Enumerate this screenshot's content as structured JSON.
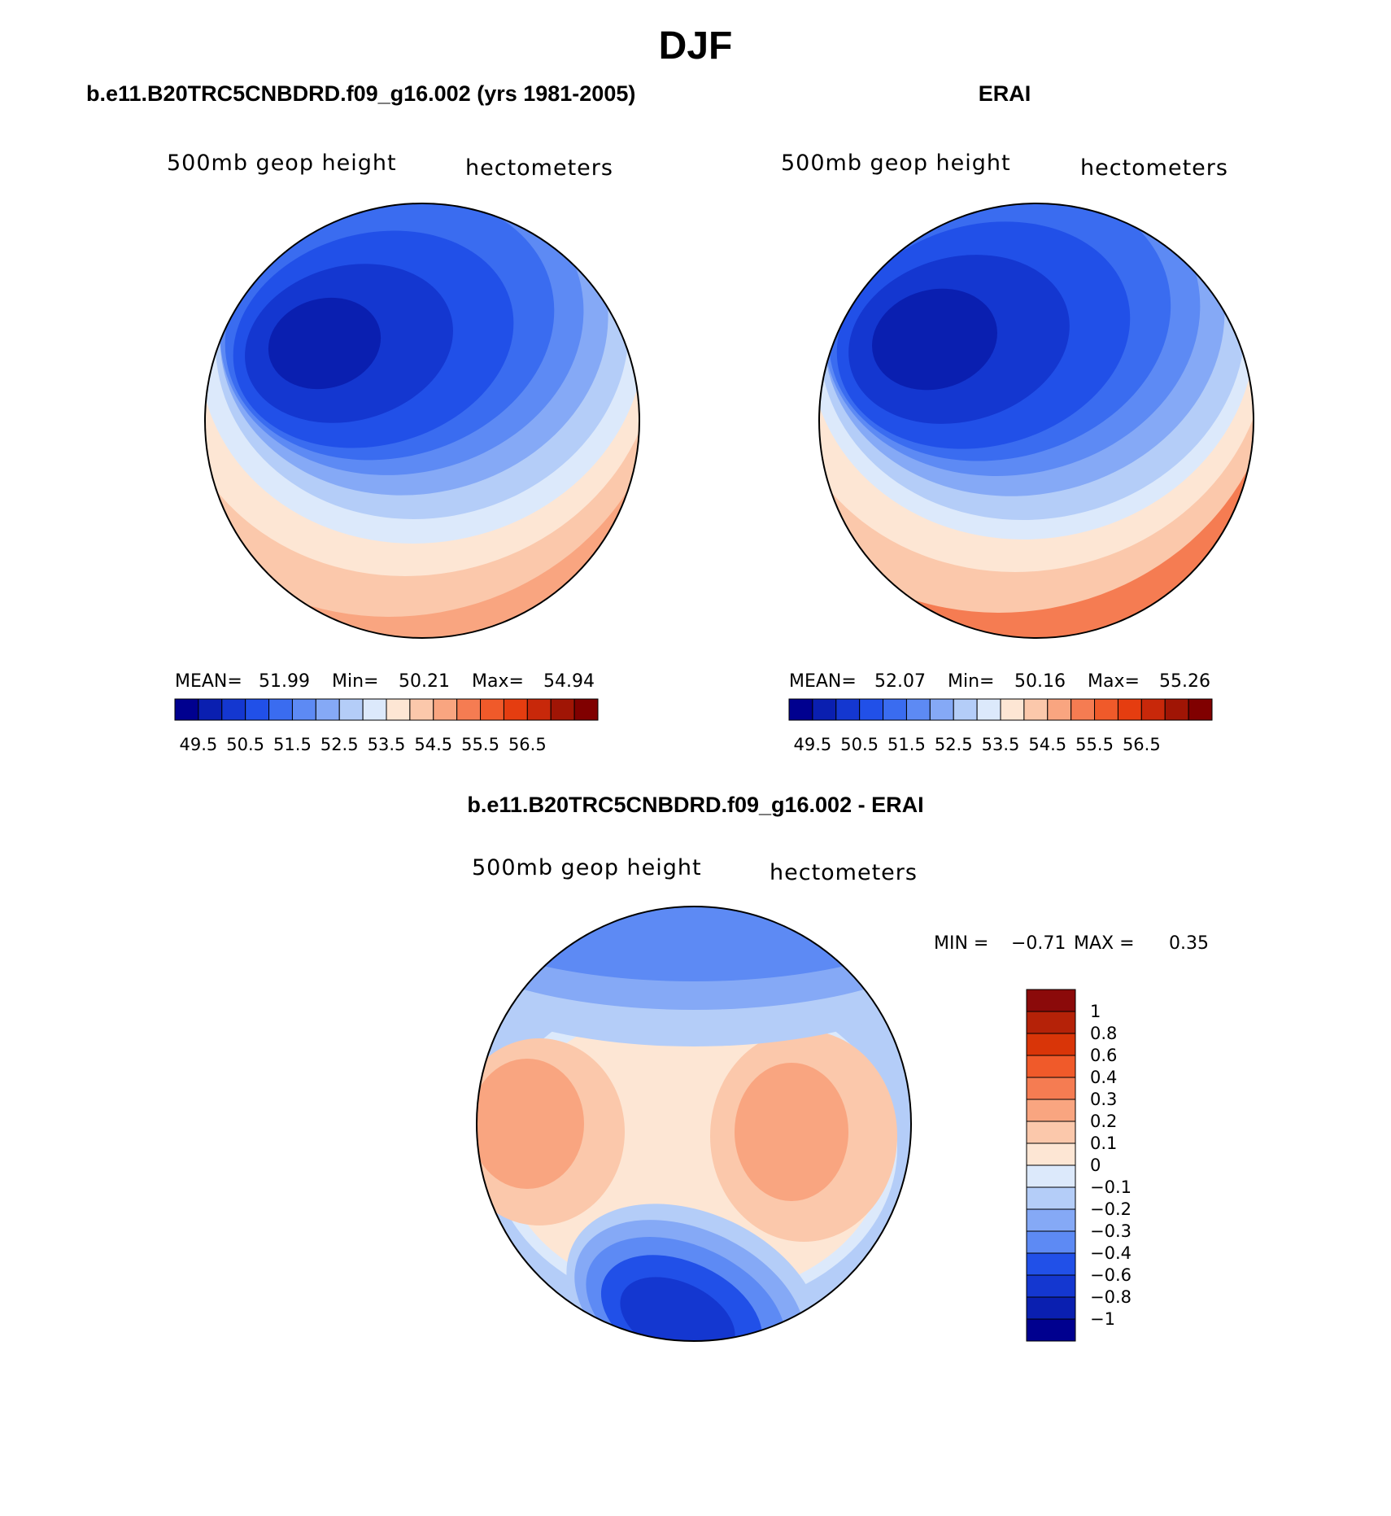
{
  "figure_title": "DJF",
  "chart_data": [
    {
      "type": "heatmap",
      "projection": "north-polar-stereographic",
      "panel_title": "b.e11.B20TRC5CNBDRD.f09_g16.002 (yrs 1981-2005)",
      "variable": "500mb geop height",
      "units": "hectometers",
      "stats": {
        "mean_label": "MEAN=",
        "mean": "51.99",
        "min_label": "Min=",
        "min": "50.21",
        "max_label": "Max=",
        "max": "54.94"
      },
      "levels": [
        "49.5",
        "50.5",
        "51.5",
        "52.5",
        "53.5",
        "54.5",
        "55.5",
        "56.5"
      ],
      "colorbar_orientation": "horizontal",
      "colors": [
        "#00008f",
        "#0a1fb0",
        "#1437d0",
        "#2150e8",
        "#3a6cf0",
        "#5d8af4",
        "#85a9f6",
        "#b4cdf8",
        "#dce9fb",
        "#fde6d4",
        "#fbc8ab",
        "#f9a580",
        "#f57c52",
        "#f05a2a",
        "#e53d10",
        "#c8280a",
        "#a01505",
        "#800000"
      ],
      "field": {
        "min": 50.21,
        "max": 54.94,
        "low_center": "over Canadian Arctic / Baffin Bay",
        "high": "at the southern edge (mid-latitudes)"
      }
    },
    {
      "type": "heatmap",
      "projection": "north-polar-stereographic",
      "panel_title": "ERAI",
      "variable": "500mb geop height",
      "units": "hectometers",
      "stats": {
        "mean_label": "MEAN=",
        "mean": "52.07",
        "min_label": "Min=",
        "min": "50.16",
        "max_label": "Max=",
        "max": "55.26"
      },
      "levels": [
        "49.5",
        "50.5",
        "51.5",
        "52.5",
        "53.5",
        "54.5",
        "55.5",
        "56.5"
      ],
      "colorbar_orientation": "horizontal",
      "colors": [
        "#00008f",
        "#0a1fb0",
        "#1437d0",
        "#2150e8",
        "#3a6cf0",
        "#5d8af4",
        "#85a9f6",
        "#b4cdf8",
        "#dce9fb",
        "#fde6d4",
        "#fbc8ab",
        "#f9a580",
        "#f57c52",
        "#f05a2a",
        "#e53d10",
        "#c8280a",
        "#a01505",
        "#800000"
      ],
      "field": {
        "min": 50.16,
        "max": 55.26,
        "low_center": "over Canadian Arctic / Baffin Bay",
        "high": "at the southern edge (mid-latitudes)"
      }
    },
    {
      "type": "heatmap",
      "projection": "north-polar-stereographic",
      "panel_title": "b.e11.B20TRC5CNBDRD.f09_g16.002 - ERAI",
      "variable": "500mb geop height",
      "units": "hectometers",
      "stats": {
        "min_label": "MIN =",
        "min": "−0.71",
        "max_label": "MAX =",
        "max": "0.35"
      },
      "levels": [
        "1",
        "0.8",
        "0.6",
        "0.4",
        "0.3",
        "0.2",
        "0.1",
        "0",
        "−0.1",
        "−0.2",
        "−0.3",
        "−0.4",
        "−0.6",
        "−0.8",
        "−1"
      ],
      "colorbar_orientation": "vertical",
      "colors": [
        "#8b0a0a",
        "#b52208",
        "#d93508",
        "#f05a2a",
        "#f57c52",
        "#f9a580",
        "#fbc8ab",
        "#fde6d4",
        "#dce9fb",
        "#b4cdf8",
        "#85a9f6",
        "#5d8af4",
        "#2150e8",
        "#1437d0",
        "#0a1fb0",
        "#00008f"
      ],
      "field": {
        "min": -0.71,
        "max": 0.35,
        "positive_centers": "Alaska / NE Pacific and Siberia",
        "negative_centers": "North Atlantic and mid-latitude rim"
      }
    }
  ]
}
